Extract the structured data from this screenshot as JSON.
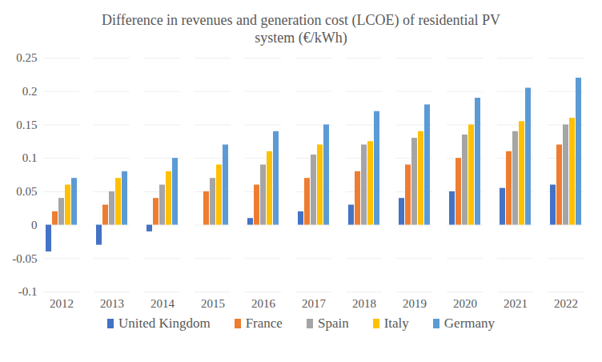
{
  "chart_data": {
    "type": "bar",
    "title": "Difference in revenues and generation cost (LCOE) of residential PV system (€/kWh)",
    "categories": [
      "2012",
      "2013",
      "2014",
      "2015",
      "2016",
      "2017",
      "2018",
      "2019",
      "2020",
      "2021",
      "2022"
    ],
    "series": [
      {
        "name": "United Kingdom",
        "color": "#4472c4",
        "values": [
          -0.04,
          -0.03,
          -0.01,
          0,
          0.01,
          0.02,
          0.03,
          0.04,
          0.05,
          0.055,
          0.06
        ]
      },
      {
        "name": "France",
        "color": "#ed7d31",
        "values": [
          0.02,
          0.03,
          0.04,
          0.05,
          0.06,
          0.07,
          0.08,
          0.09,
          0.1,
          0.11,
          0.12
        ]
      },
      {
        "name": "Spain",
        "color": "#a5a5a5",
        "values": [
          0.04,
          0.05,
          0.06,
          0.07,
          0.09,
          0.105,
          0.12,
          0.13,
          0.135,
          0.14,
          0.15
        ]
      },
      {
        "name": "Italy",
        "color": "#ffc000",
        "values": [
          0.06,
          0.07,
          0.08,
          0.09,
          0.11,
          0.12,
          0.125,
          0.14,
          0.15,
          0.155,
          0.16
        ]
      },
      {
        "name": "Germany",
        "color": "#5b9bd5",
        "values": [
          0.07,
          0.08,
          0.1,
          0.12,
          0.14,
          0.15,
          0.17,
          0.18,
          0.19,
          0.205,
          0.22
        ]
      }
    ],
    "ylim": [
      -0.1,
      0.25
    ],
    "yticks": [
      -0.1,
      -0.05,
      0,
      0.05,
      0.1,
      0.15,
      0.2,
      0.25
    ],
    "grid": true,
    "legend": "bottom"
  }
}
